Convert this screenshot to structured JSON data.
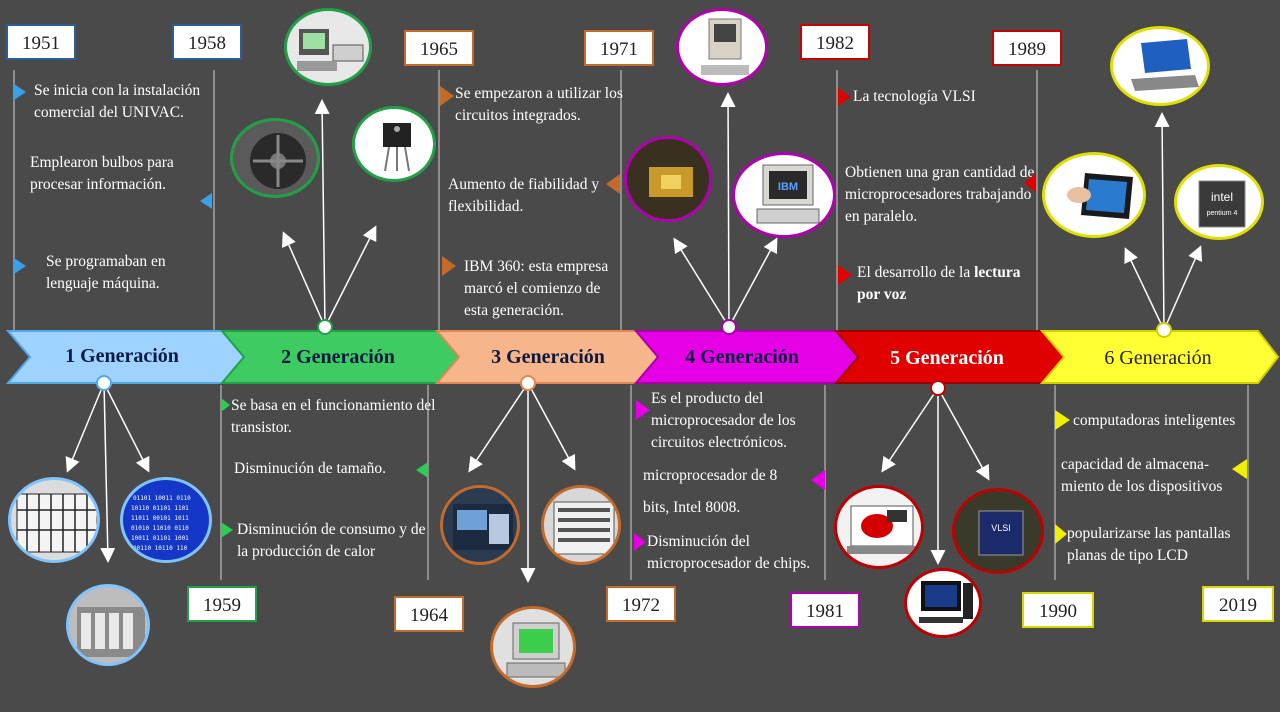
{
  "generations": [
    {
      "label": "1 Generación",
      "color": "#9fd3ff",
      "border": "#5ab0f0"
    },
    {
      "label": "2 Generación",
      "color": "#46d46a",
      "border": "#2fa84e"
    },
    {
      "label": "3 Generación",
      "color": "#f7b58c",
      "border": "#e0884f"
    },
    {
      "label": "4 Generación",
      "color": "#e600e6",
      "border": "#b000b0"
    },
    {
      "label": "5 Generación",
      "color": "#e00000",
      "border": "#a00000"
    },
    {
      "label": "6 Generación",
      "color": "#ffff33",
      "border": "#d8d800"
    }
  ],
  "years": {
    "y1951": "1951",
    "y1958": "1958",
    "y1965": "1965",
    "y1971": "1971",
    "y1982": "1982",
    "y1989": "1989",
    "y1959": "1959",
    "y1964": "1964",
    "y1972": "1972",
    "y1981": "1981",
    "y1990": "1990",
    "y2019": "2019"
  },
  "gen1": {
    "t1": "Se inicia con la instalación comercial del UNIVAC.",
    "t2": "Emplearon bulbos para procesar información.",
    "t3": "Se programaban en lenguaje máquina."
  },
  "gen2": {
    "t1": "Se basa en el funcionamiento del transistor.",
    "t2": "Disminución de tamaño.",
    "t3": "Disminución de consumo y de la producción de calor"
  },
  "gen3": {
    "t1": "Se empezaron a utilizar los circuitos integrados.",
    "t2": "Aumento de fiabilidad y flexibilidad.",
    "t3": "IBM 360: esta empresa marcó el comienzo de esta generación."
  },
  "gen4": {
    "t1": "Es el producto del microprocesador de los circuitos electrónicos.",
    "t2": "microprocesador de 8 bits, Intel 8008.",
    "t3": "Disminución del microprocesador de chips."
  },
  "gen5": {
    "t1": "La tecnología VLSI",
    "t2": "Obtienen una gran cantidad de microprocesadores trabajando en paralelo.",
    "t3a": "El desarrollo de la ",
    "t3b": "lectura por voz"
  },
  "gen6": {
    "t1": "computadoras inteligentes",
    "t2": "capacidad de almacena-miento de los dispositivos",
    "t3": "popularizarse las pantallas planas de tipo LCD"
  },
  "pictures": {
    "ibm": "IBM",
    "vlsi": "VLSI",
    "intel": "intel",
    "pentium": "pentium 4"
  }
}
